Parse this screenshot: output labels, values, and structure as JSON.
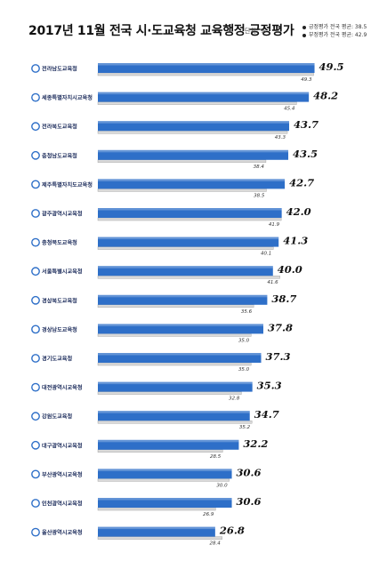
{
  "header": {
    "title": "2017년 11월 전국 시·도교육청 교육행정 긍정평가",
    "unit": "단위: %",
    "legend": [
      "긍정평가 전국 평균: 38.5",
      "부정평가 전국 평균: 42.9"
    ]
  },
  "colors": {
    "positive_bar": "#2E6FC8",
    "negative_bar": "#D9D9D9",
    "negative_bar_edge": "#9A9A9A"
  },
  "chart_data": {
    "type": "bar",
    "orientation": "horizontal",
    "categories": [
      "전라남도교육청",
      "세종특별자치시교육청",
      "전라북도교육청",
      "충청남도교육청",
      "제주특별자치도교육청",
      "광주광역시교육청",
      "충청북도교육청",
      "서울특별시교육청",
      "경상북도교육청",
      "경상남도교육청",
      "경기도교육청",
      "대전광역시교육청",
      "강원도교육청",
      "대구광역시교육청",
      "부산광역시교육청",
      "인천광역시교육청",
      "울산광역시교육청"
    ],
    "series": [
      {
        "values": [
          49.5,
          48.2,
          43.7,
          43.5,
          42.7,
          42.0,
          41.3,
          40.0,
          38.7,
          37.8,
          37.3,
          35.3,
          34.7,
          32.2,
          30.6,
          30.6,
          26.8
        ]
      },
      {
        "values": [
          49.3,
          45.4,
          43.3,
          38.4,
          38.5,
          41.9,
          40.1,
          41.6,
          35.6,
          35.0,
          35.0,
          32.8,
          35.2,
          28.5,
          30.0,
          26.9,
          28.4
        ]
      }
    ],
    "value_labels_primary": [
      "49.5",
      "48.2",
      "43.7",
      "43.5",
      "42.7",
      "42.0",
      "41.3",
      "40.0",
      "38.7",
      "37.8",
      "37.3",
      "35.3",
      "34.7",
      "32.2",
      "30.6",
      "30.6",
      "26.8"
    ],
    "value_labels_secondary": [
      "49.3",
      "45.4",
      "43.3",
      "38.4",
      "38.5",
      "41.9",
      "40.1",
      "41.6",
      "35.6",
      "35.0",
      "35.0",
      "32.8",
      "35.2",
      "28.5",
      "30.0",
      "26.9",
      "28.4"
    ],
    "xlim": [
      0,
      50
    ],
    "grid": false,
    "legend": "top-right"
  }
}
